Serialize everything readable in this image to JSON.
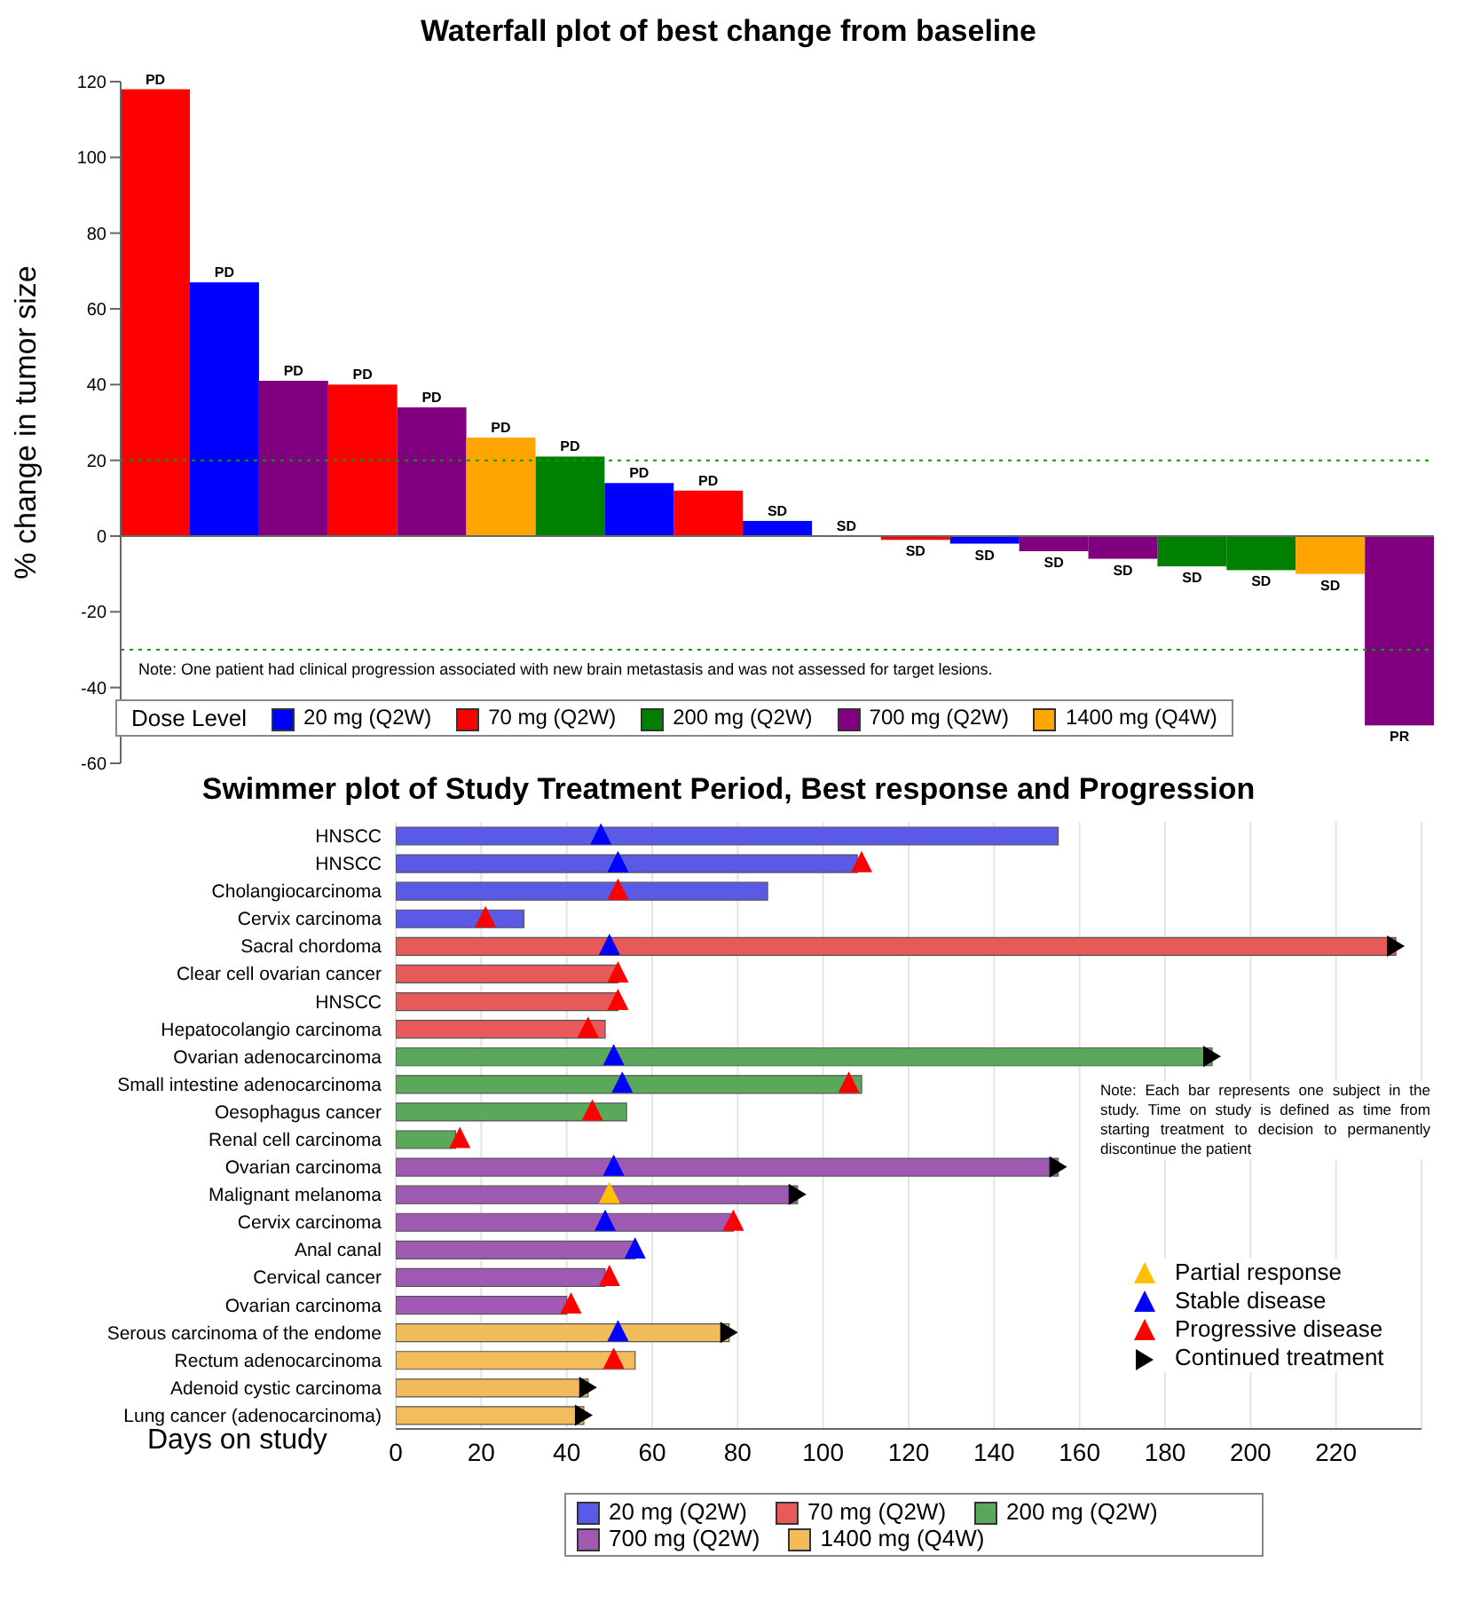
{
  "chart_data": [
    {
      "type": "bar",
      "title": "Waterfall plot of best change from baseline",
      "ylabel": "% change in tumor size",
      "stacked": true,
      "legend": "bottom left",
      "legend_title": "Dose Level",
      "categories": [
        null,
        null,
        null,
        null,
        null,
        null,
        null,
        null,
        null,
        null,
        null,
        null,
        null,
        null,
        null,
        null,
        null,
        null,
        null
      ],
      "ylim": [
        -60,
        120
      ],
      "yticks": [
        -60,
        -40,
        -20,
        0,
        20,
        40,
        60,
        80,
        100,
        120
      ],
      "ref_lines": [
        {
          "axis": "y",
          "value": 20,
          "color": "#00a000",
          "line_style": "dotted"
        },
        {
          "axis": "y",
          "value": -30,
          "color": "#00a000",
          "line_style": "dotted"
        }
      ],
      "annotations": [
        "Note: One patient had clinical progression associated with new brain metastasis and was not assessed for target lesions."
      ],
      "series": [
        {
          "name": "20 mg (Q2W)",
          "color": "#0000ff",
          "values": [
            null,
            67,
            null,
            null,
            null,
            null,
            null,
            14,
            null,
            4,
            0,
            null,
            -2,
            null,
            null,
            null,
            null,
            null,
            null
          ],
          "value_labels": [
            null,
            "PD",
            null,
            null,
            null,
            null,
            null,
            "PD",
            null,
            "SD",
            "SD",
            null,
            "SD",
            null,
            null,
            null,
            null,
            null,
            null
          ]
        },
        {
          "name": "70 mg (Q2W)",
          "color": "#ff0000",
          "values": [
            118,
            null,
            null,
            40,
            null,
            null,
            null,
            null,
            12,
            null,
            null,
            -1,
            null,
            null,
            null,
            null,
            null,
            null,
            null
          ],
          "value_labels": [
            "PD",
            null,
            null,
            "PD",
            null,
            null,
            null,
            null,
            "PD",
            null,
            null,
            "SD",
            null,
            null,
            null,
            null,
            null,
            null,
            null
          ]
        },
        {
          "name": "200 mg (Q2W)",
          "color": "#008000",
          "values": [
            null,
            null,
            null,
            null,
            null,
            null,
            21,
            null,
            null,
            null,
            null,
            null,
            null,
            null,
            null,
            -8,
            -9,
            null,
            null
          ],
          "value_labels": [
            null,
            null,
            null,
            null,
            null,
            null,
            "PD",
            null,
            null,
            null,
            null,
            null,
            null,
            null,
            null,
            "SD",
            "SD",
            null,
            null
          ]
        },
        {
          "name": "700 mg (Q2W)",
          "color": "#800080",
          "values": [
            null,
            null,
            41,
            null,
            34,
            null,
            null,
            null,
            null,
            null,
            null,
            null,
            null,
            -4,
            -6,
            null,
            null,
            null,
            -50
          ],
          "value_labels": [
            null,
            null,
            "PD",
            null,
            "PD",
            null,
            null,
            null,
            null,
            null,
            null,
            null,
            null,
            "SD",
            "SD",
            null,
            null,
            null,
            "PR"
          ]
        },
        {
          "name": "1400 mg (Q4W)",
          "color": "#ffa500",
          "values": [
            null,
            null,
            null,
            null,
            null,
            26,
            null,
            null,
            null,
            null,
            null,
            null,
            null,
            null,
            null,
            null,
            null,
            -10,
            null
          ],
          "value_labels": [
            null,
            null,
            null,
            null,
            null,
            "PD",
            null,
            null,
            null,
            null,
            null,
            null,
            null,
            null,
            null,
            null,
            null,
            "SD",
            null
          ]
        }
      ]
    },
    {
      "type": "bar",
      "orientation": "horizontal",
      "stacked": true,
      "title": "Swimmer plot of Study Treatment Period, Best response and Progression",
      "xlabel": "Days on study",
      "legend": "bottom",
      "grid": "x",
      "categories": [
        "HNSCC",
        "HNSCC",
        "Cholangiocarcinoma",
        "Cervix carcinoma",
        "Sacral chordoma",
        "Clear cell ovarian cancer",
        "HNSCC",
        "Hepatocolangio carcinoma",
        "Ovarian adenocarcinoma",
        "Small intestine adenocarcinoma",
        "Oesophagus cancer",
        "Renal cell carcinoma",
        "Ovarian carcinoma",
        "Malignant melanoma",
        "Cervix carcinoma",
        "Anal canal",
        "Cervical cancer",
        "Ovarian carcinoma",
        "Serous carcinoma of the endome",
        "Rectum adenocarcinoma",
        "Adenoid cystic carcinoma",
        "Lung cancer (adenocarcinoma)"
      ],
      "xlim": [
        0,
        240
      ],
      "xticks": [
        0,
        20,
        40,
        60,
        80,
        100,
        120,
        140,
        160,
        180,
        200,
        220
      ],
      "annotations": [
        "Note: Each bar represents one subject in the study.  Time on study is defined as time from starting treatment to decision to permanently discontinue the patient"
      ],
      "series": [
        {
          "name": "20 mg (Q2W)",
          "color": "#5a5ae6",
          "values": [
            155,
            108,
            87,
            30,
            null,
            null,
            null,
            null,
            null,
            null,
            null,
            null,
            null,
            null,
            null,
            null,
            null,
            null,
            null,
            null,
            null,
            null
          ]
        },
        {
          "name": "70 mg (Q2W)",
          "color": "#e85a5a",
          "values": [
            null,
            null,
            null,
            null,
            234,
            52,
            52,
            49,
            null,
            null,
            null,
            null,
            null,
            null,
            null,
            null,
            null,
            null,
            null,
            null,
            null,
            null
          ]
        },
        {
          "name": "200 mg (Q2W)",
          "color": "#5aa85a",
          "values": [
            null,
            null,
            null,
            null,
            null,
            null,
            null,
            null,
            191,
            109,
            54,
            14,
            null,
            null,
            null,
            null,
            null,
            null,
            null,
            null,
            null,
            null
          ]
        },
        {
          "name": "700 mg (Q2W)",
          "color": "#a05ab4",
          "values": [
            null,
            null,
            null,
            null,
            null,
            null,
            null,
            null,
            null,
            null,
            null,
            null,
            155,
            94,
            79,
            56,
            49,
            40,
            null,
            null,
            null,
            null
          ]
        },
        {
          "name": "1400 mg (Q4W)",
          "color": "#f2bc5a",
          "values": [
            null,
            null,
            null,
            null,
            null,
            null,
            null,
            null,
            null,
            null,
            null,
            null,
            null,
            null,
            null,
            null,
            null,
            null,
            78,
            56,
            45,
            44
          ]
        },
        {
          "name": "Partial response",
          "type": "scatter",
          "marker": "triangle",
          "color": "#ffc000",
          "values": [
            null,
            null,
            null,
            null,
            null,
            null,
            null,
            null,
            null,
            null,
            null,
            null,
            null,
            50,
            null,
            null,
            null,
            null,
            null,
            null,
            null,
            null
          ]
        },
        {
          "name": "Stable disease",
          "type": "scatter",
          "marker": "triangle",
          "color": "#0000ff",
          "values": [
            48,
            52,
            null,
            null,
            50,
            null,
            null,
            null,
            51,
            53,
            null,
            null,
            51,
            null,
            49,
            56,
            null,
            null,
            52,
            null,
            null,
            null
          ]
        },
        {
          "name": "Progressive disease",
          "type": "scatter",
          "marker": "triangle",
          "color": "#ff0000",
          "values": [
            null,
            109,
            52,
            21,
            null,
            52,
            52,
            45,
            null,
            106,
            46,
            15,
            null,
            null,
            79,
            null,
            50,
            41,
            null,
            51,
            null,
            null
          ]
        },
        {
          "name": "Continued treatment",
          "type": "scatter",
          "color": "#000000",
          "values": [
            null,
            null,
            null,
            null,
            234,
            null,
            null,
            null,
            191,
            null,
            null,
            null,
            155,
            94,
            null,
            null,
            null,
            null,
            78,
            null,
            45,
            44
          ]
        }
      ]
    }
  ]
}
